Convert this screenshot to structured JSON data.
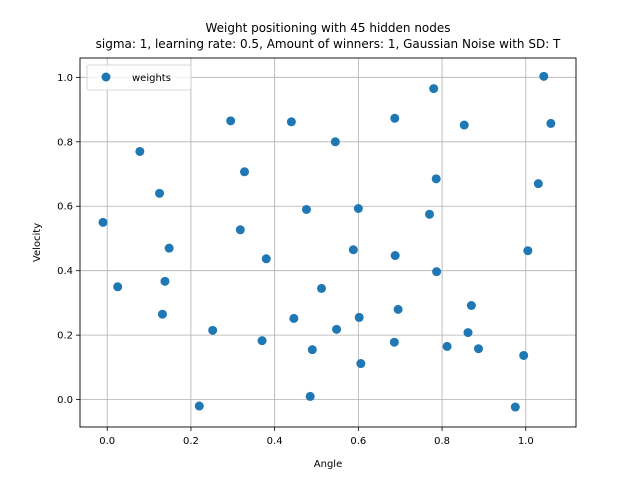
{
  "chart_data": {
    "type": "scatter",
    "title": "Weight positioning with 45 hidden nodes",
    "subtitle": "sigma: 1, learning rate: 0.5, Amount of winners: 1, Gaussian Noise with SD: T",
    "xlabel": "Angle",
    "ylabel": "Velocity",
    "xlim": [
      -0.065,
      1.12
    ],
    "ylim": [
      -0.085,
      1.06
    ],
    "xticks": [
      0.0,
      0.2,
      0.4,
      0.6,
      0.8,
      1.0
    ],
    "xtick_labels": [
      "0.0",
      "0.2",
      "0.4",
      "0.6",
      "0.8",
      "1.0"
    ],
    "yticks": [
      0.0,
      0.2,
      0.4,
      0.6,
      0.8,
      1.0
    ],
    "ytick_labels": [
      "0.0",
      "0.2",
      "0.4",
      "0.6",
      "0.8",
      "1.0"
    ],
    "grid": true,
    "legend": {
      "position": "top-left",
      "entries": [
        "weights"
      ]
    },
    "series": [
      {
        "name": "weights",
        "color": "#1f77b4",
        "points": [
          [
            -0.01,
            0.55
          ],
          [
            0.025,
            0.35
          ],
          [
            0.078,
            0.77
          ],
          [
            0.125,
            0.64
          ],
          [
            0.132,
            0.265
          ],
          [
            0.138,
            0.367
          ],
          [
            0.148,
            0.47
          ],
          [
            0.22,
            -0.02
          ],
          [
            0.252,
            0.215
          ],
          [
            0.295,
            0.865
          ],
          [
            0.318,
            0.527
          ],
          [
            0.328,
            0.707
          ],
          [
            0.37,
            0.183
          ],
          [
            0.38,
            0.437
          ],
          [
            0.44,
            0.862
          ],
          [
            0.446,
            0.252
          ],
          [
            0.476,
            0.59
          ],
          [
            0.485,
            0.01
          ],
          [
            0.49,
            0.155
          ],
          [
            0.512,
            0.345
          ],
          [
            0.545,
            0.8
          ],
          [
            0.548,
            0.218
          ],
          [
            0.588,
            0.465
          ],
          [
            0.6,
            0.593
          ],
          [
            0.602,
            0.255
          ],
          [
            0.606,
            0.112
          ],
          [
            0.686,
            0.178
          ],
          [
            0.687,
            0.873
          ],
          [
            0.688,
            0.447
          ],
          [
            0.695,
            0.28
          ],
          [
            0.77,
            0.575
          ],
          [
            0.78,
            0.965
          ],
          [
            0.786,
            0.685
          ],
          [
            0.787,
            0.397
          ],
          [
            0.812,
            0.165
          ],
          [
            0.853,
            0.852
          ],
          [
            0.862,
            0.208
          ],
          [
            0.87,
            0.292
          ],
          [
            0.887,
            0.158
          ],
          [
            0.975,
            -0.023
          ],
          [
            0.995,
            0.137
          ],
          [
            1.005,
            0.462
          ],
          [
            1.03,
            0.67
          ],
          [
            1.043,
            1.003
          ],
          [
            1.06,
            0.857
          ]
        ]
      }
    ]
  }
}
